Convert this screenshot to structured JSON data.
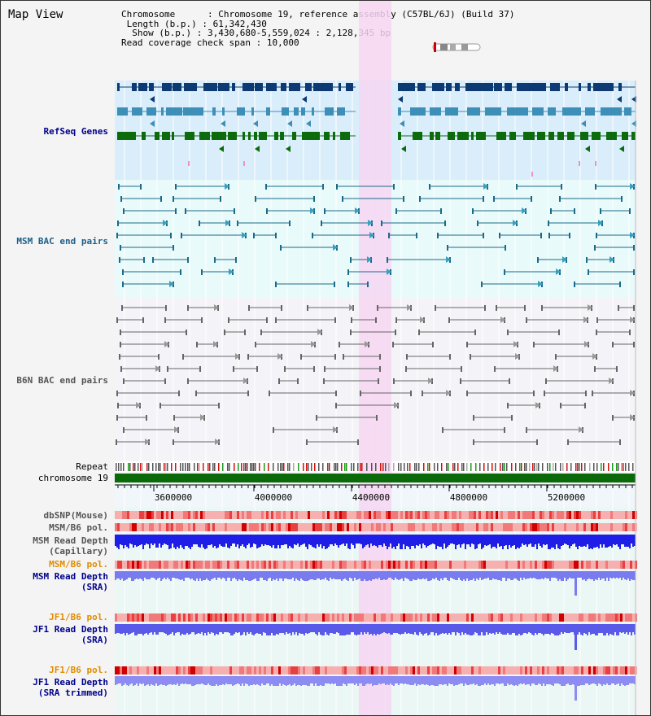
{
  "title": "Map View",
  "info": {
    "chromosome_label": "Chromosome",
    "chromosome_value": "Chromosome 19, reference assembly (C57BL/6J) (Build 37)",
    "length_label": "Length (b.p.)",
    "length_value": "61,342,430",
    "show_label": "Show (b.p.)",
    "show_value": "3,430,680-5,559,024 : 2,128,345 bp",
    "coverage_label": "Read coverage check span",
    "coverage_value": "10,000"
  },
  "tracks": {
    "refseq": "RefSeq Genes",
    "msm_bac": "MSM BAC end pairs",
    "b6n_bac": "B6N BAC end pairs",
    "repeat": "Repeat",
    "chromosome": "chromosome 19",
    "dbsnp": "dbSNP(Mouse)",
    "msm_b6_pol_1": "MSM/B6 pol.",
    "msm_depth_cap_1": "MSM Read Depth",
    "msm_depth_cap_2": "(Capillary)",
    "msm_b6_pol_2": "MSM/B6 pol.",
    "msm_depth_sra_1": "MSM Read Depth",
    "msm_depth_sra_2": "(SRA)",
    "jf1_pol_1": "JF1/B6 pol.",
    "jf1_depth_1": "JF1 Read Depth",
    "jf1_depth_2": "(SRA)",
    "jf1_pol_2": "JF1/B6 pol.",
    "jf1_trim_1": "JF1 Read Depth",
    "jf1_trim_2": "(SRA trimmed)"
  },
  "axis": {
    "ticks": [
      "3600000",
      "4000000",
      "4400000",
      "4800000",
      "5200000"
    ]
  },
  "colors": {
    "highlight": "#f6d6f2",
    "refseq_bg": "#d9eefa",
    "bac_bg": "#e8fafa",
    "refseq_dark": "#0d3a73",
    "refseq_mid": "#3d8fb8",
    "refseq_green": "#0d6b0d",
    "label_blue": "#00008b",
    "label_teal": "#1c5f8a",
    "label_orange": "#e08c00",
    "depth_blue": "#1e1ee6",
    "depth_light": "#7b7bf0",
    "pol_red": "#f07a7a",
    "chromosome_green": "#0a6a0a"
  }
}
